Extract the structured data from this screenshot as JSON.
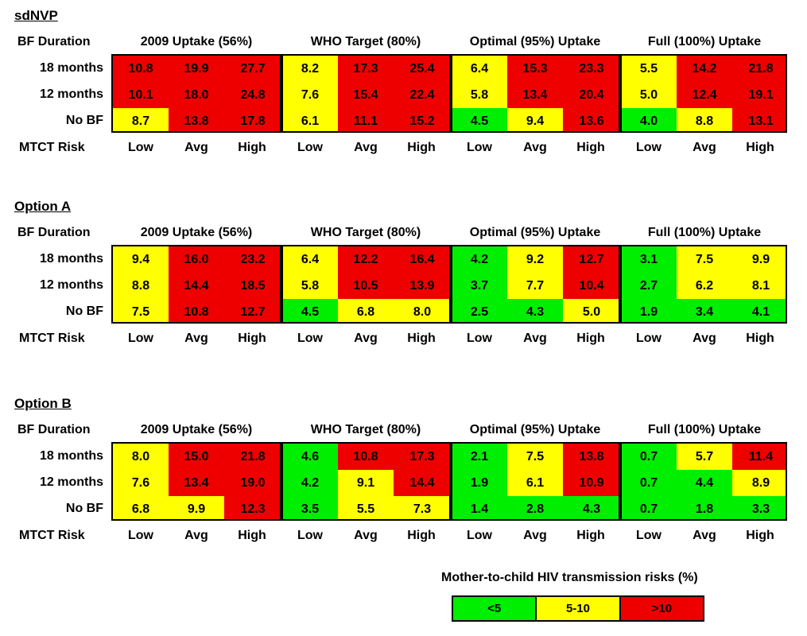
{
  "chart_data": {
    "type": "table",
    "row_header": "BF Duration",
    "column_header": "MTCT Risk",
    "groups": [
      "2009 Uptake (56%)",
      "WHO Target (80%)",
      "Optimal (95%) Uptake",
      "Full (100%) Uptake"
    ],
    "risk_levels": [
      "Low",
      "Avg",
      "High"
    ],
    "rows": [
      "18 months",
      "12 months",
      "No BF"
    ],
    "panels": [
      {
        "title": "sdNVP",
        "values": [
          [
            "10.8",
            "19.9",
            "27.7",
            "8.2",
            "17.3",
            "25.4",
            "6.4",
            "15.3",
            "23.3",
            "5.5",
            "14.2",
            "21.8"
          ],
          [
            "10.1",
            "18.0",
            "24.8",
            "7.6",
            "15.4",
            "22.4",
            "5.8",
            "13.4",
            "20.4",
            "5.0",
            "12.4",
            "19.1"
          ],
          [
            "8.7",
            "13.8",
            "17.8",
            "6.1",
            "11.1",
            "15.2",
            "4.5",
            "9.4",
            "13.6",
            "4.0",
            "8.8",
            "13.1"
          ]
        ]
      },
      {
        "title": "Option A",
        "values": [
          [
            "9.4",
            "16.0",
            "23.2",
            "6.4",
            "12.2",
            "16.4",
            "4.2",
            "9.2",
            "12.7",
            "3.1",
            "7.5",
            "9.9"
          ],
          [
            "8.8",
            "14.4",
            "18.5",
            "5.8",
            "10.5",
            "13.9",
            "3.7",
            "7.7",
            "10.4",
            "2.7",
            "6.2",
            "8.1"
          ],
          [
            "7.5",
            "10.8",
            "12.7",
            "4.5",
            "6.8",
            "8.0",
            "2.5",
            "4.3",
            "5.0",
            "1.9",
            "3.4",
            "4.1"
          ]
        ]
      },
      {
        "title": "Option B",
        "values": [
          [
            "8.0",
            "15.0",
            "21.8",
            "4.6",
            "10.8",
            "17.3",
            "2.1",
            "7.5",
            "13.8",
            "0.7",
            "5.7",
            "11.4"
          ],
          [
            "7.6",
            "13.4",
            "19.0",
            "4.2",
            "9.1",
            "14.4",
            "1.9",
            "6.1",
            "10.9",
            "0.7",
            "4.4",
            "8.9"
          ],
          [
            "6.8",
            "9.9",
            "12.3",
            "3.5",
            "5.5",
            "7.3",
            "1.4",
            "2.8",
            "4.3",
            "0.7",
            "1.8",
            "3.3"
          ]
        ]
      }
    ],
    "legend": {
      "title": "Mother-to-child HIV transmission risks (%)",
      "items": [
        {
          "label": "<5",
          "color": "#00ee00"
        },
        {
          "label": "5-10",
          "color": "#ffff00"
        },
        {
          "label": ">10",
          "color": "#ee0000"
        }
      ]
    }
  }
}
